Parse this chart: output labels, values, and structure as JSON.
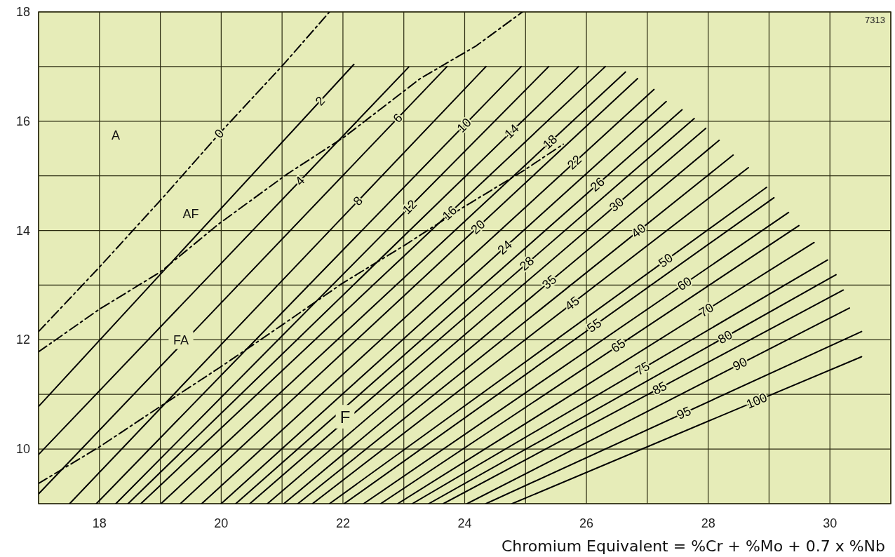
{
  "chart_data": {
    "type": "line",
    "xlabel": "Chromium Equivalent = %Cr + %Mo + 0.7 x %Nb",
    "xlim": [
      17,
      31
    ],
    "ylim": [
      9,
      18
    ],
    "xticks": [
      {
        "value": 17,
        "label": null
      },
      18,
      {
        "value": 19,
        "label": null
      },
      20,
      {
        "value": 21,
        "label": null
      },
      22,
      {
        "value": 23,
        "label": null
      },
      24,
      {
        "value": 25,
        "label": null
      },
      26,
      {
        "value": 27,
        "label": null
      },
      28,
      {
        "value": 29,
        "label": null
      },
      30,
      {
        "value": 31,
        "label": null
      }
    ],
    "yticks": [
      {
        "value": 9,
        "label": null
      },
      10,
      {
        "value": 11,
        "label": null
      },
      12,
      {
        "value": 13,
        "label": null
      },
      14,
      {
        "value": 15,
        "label": null
      },
      16,
      {
        "value": 17,
        "label": null
      },
      18
    ],
    "grid": true,
    "line_style": "solid",
    "annotations": [
      "7313",
      "A",
      "AF",
      "FA",
      "F"
    ],
    "series": [
      {
        "name": "0",
        "color": "#000000",
        "line_style": "dashed",
        "x": [
          17,
          18,
          19,
          20,
          21,
          21.78
        ],
        "values": [
          12.15,
          13.33,
          14.55,
          15.81,
          17.01,
          18
        ]
      },
      {
        "color": "#000000",
        "line_style": "dashed",
        "x": [
          17,
          18,
          19,
          19.96,
          21.08,
          22.02,
          23.27,
          24.19,
          24.95
        ],
        "values": [
          11.78,
          12.56,
          13.24,
          14.12,
          15.03,
          15.71,
          16.78,
          17.38,
          18
        ]
      },
      {
        "color": "#000000",
        "line_style": "dashed",
        "x": [
          17,
          18,
          19,
          20,
          21,
          22,
          23,
          23.97,
          24.96,
          25.62
        ],
        "values": [
          9.37,
          10.04,
          10.78,
          11.51,
          12.27,
          13.04,
          13.72,
          14.42,
          15.09,
          15.58
        ]
      },
      {
        "name": "2",
        "color": "#000000",
        "x": [
          17,
          22.18
        ],
        "values": [
          10.78,
          17.04
        ]
      },
      {
        "name": "4",
        "color": "#000000",
        "x": [
          17,
          23.08
        ],
        "values": [
          9.9,
          16.99
        ]
      },
      {
        "name": "6",
        "color": "#000000",
        "x": [
          17,
          23.71
        ],
        "values": [
          9.18,
          17
        ]
      },
      {
        "name": "8",
        "color": "#000000",
        "x": [
          17.51,
          24.35
        ],
        "values": [
          9,
          17
        ]
      },
      {
        "name": "10",
        "color": "#000000",
        "x": [
          17.95,
          24.93
        ],
        "values": [
          9,
          17
        ]
      },
      {
        "name": "12",
        "color": "#000000",
        "x": [
          18.27,
          25.38
        ],
        "values": [
          9,
          17
        ]
      },
      {
        "name": "14",
        "color": "#000000",
        "x": [
          18.47,
          25.87
        ],
        "values": [
          9,
          17
        ]
      },
      {
        "name": "16",
        "color": "#000000",
        "x": [
          18.68,
          26.31
        ],
        "values": [
          9,
          17
        ]
      },
      {
        "name": "18",
        "color": "#000000",
        "x": [
          19.01,
          26.64
        ],
        "values": [
          9,
          16.9
        ]
      },
      {
        "name": "20",
        "color": "#000000",
        "x": [
          19.33,
          26.84
        ],
        "values": [
          9,
          16.78
        ]
      },
      {
        "name": "22",
        "color": "#000000",
        "x": [
          19.68,
          27.11
        ],
        "values": [
          9,
          16.58
        ]
      },
      {
        "name": "24",
        "color": "#000000",
        "x": [
          20.0,
          27.31
        ],
        "values": [
          9,
          16.36
        ]
      },
      {
        "name": "26",
        "color": "#000000",
        "x": [
          20.24,
          27.57
        ],
        "values": [
          9,
          16.21
        ]
      },
      {
        "name": "28",
        "color": "#000000",
        "x": [
          20.47,
          27.77
        ],
        "values": [
          9,
          16.05
        ]
      },
      {
        "name": "30",
        "color": "#000000",
        "x": [
          20.76,
          27.96
        ],
        "values": [
          9,
          15.87
        ]
      },
      {
        "name": "35",
        "color": "#000000",
        "x": [
          21.03,
          28.18
        ],
        "values": [
          9,
          15.65
        ]
      },
      {
        "name": "40",
        "color": "#000000",
        "x": [
          21.26,
          28.41
        ],
        "values": [
          9,
          15.38
        ]
      },
      {
        "name": "45",
        "color": "#000000",
        "x": [
          21.5,
          28.66
        ],
        "values": [
          9,
          15.15
        ]
      },
      {
        "name": "50",
        "color": "#000000",
        "x": [
          21.78,
          28.96
        ],
        "values": [
          9,
          14.79
        ]
      },
      {
        "name": "55",
        "color": "#000000",
        "x": [
          22.02,
          29.08
        ],
        "values": [
          9,
          14.6
        ]
      },
      {
        "name": "60",
        "color": "#000000",
        "x": [
          22.34,
          29.32
        ],
        "values": [
          9,
          14.33
        ]
      },
      {
        "name": "65",
        "color": "#000000",
        "x": [
          22.62,
          29.49
        ],
        "values": [
          9,
          14.09
        ]
      },
      {
        "name": "70",
        "color": "#000000",
        "x": [
          22.9,
          29.74
        ],
        "values": [
          9,
          13.78
        ]
      },
      {
        "name": "75",
        "color": "#000000",
        "x": [
          23.14,
          29.96
        ],
        "values": [
          9,
          13.46
        ]
      },
      {
        "name": "80",
        "color": "#000000",
        "x": [
          23.41,
          30.1
        ],
        "values": [
          9,
          13.19
        ]
      },
      {
        "name": "85",
        "color": "#000000",
        "x": [
          23.65,
          30.22
        ],
        "values": [
          9,
          12.91
        ]
      },
      {
        "name": "90",
        "color": "#000000",
        "x": [
          24.04,
          30.32
        ],
        "values": [
          9,
          12.58
        ]
      },
      {
        "name": "95",
        "color": "#000000",
        "x": [
          24.35,
          30.52
        ],
        "values": [
          9,
          12.15
        ]
      },
      {
        "name": "100",
        "color": "#000000",
        "x": [
          24.78,
          30.52
        ],
        "values": [
          9,
          11.69
        ]
      }
    ]
  }
}
